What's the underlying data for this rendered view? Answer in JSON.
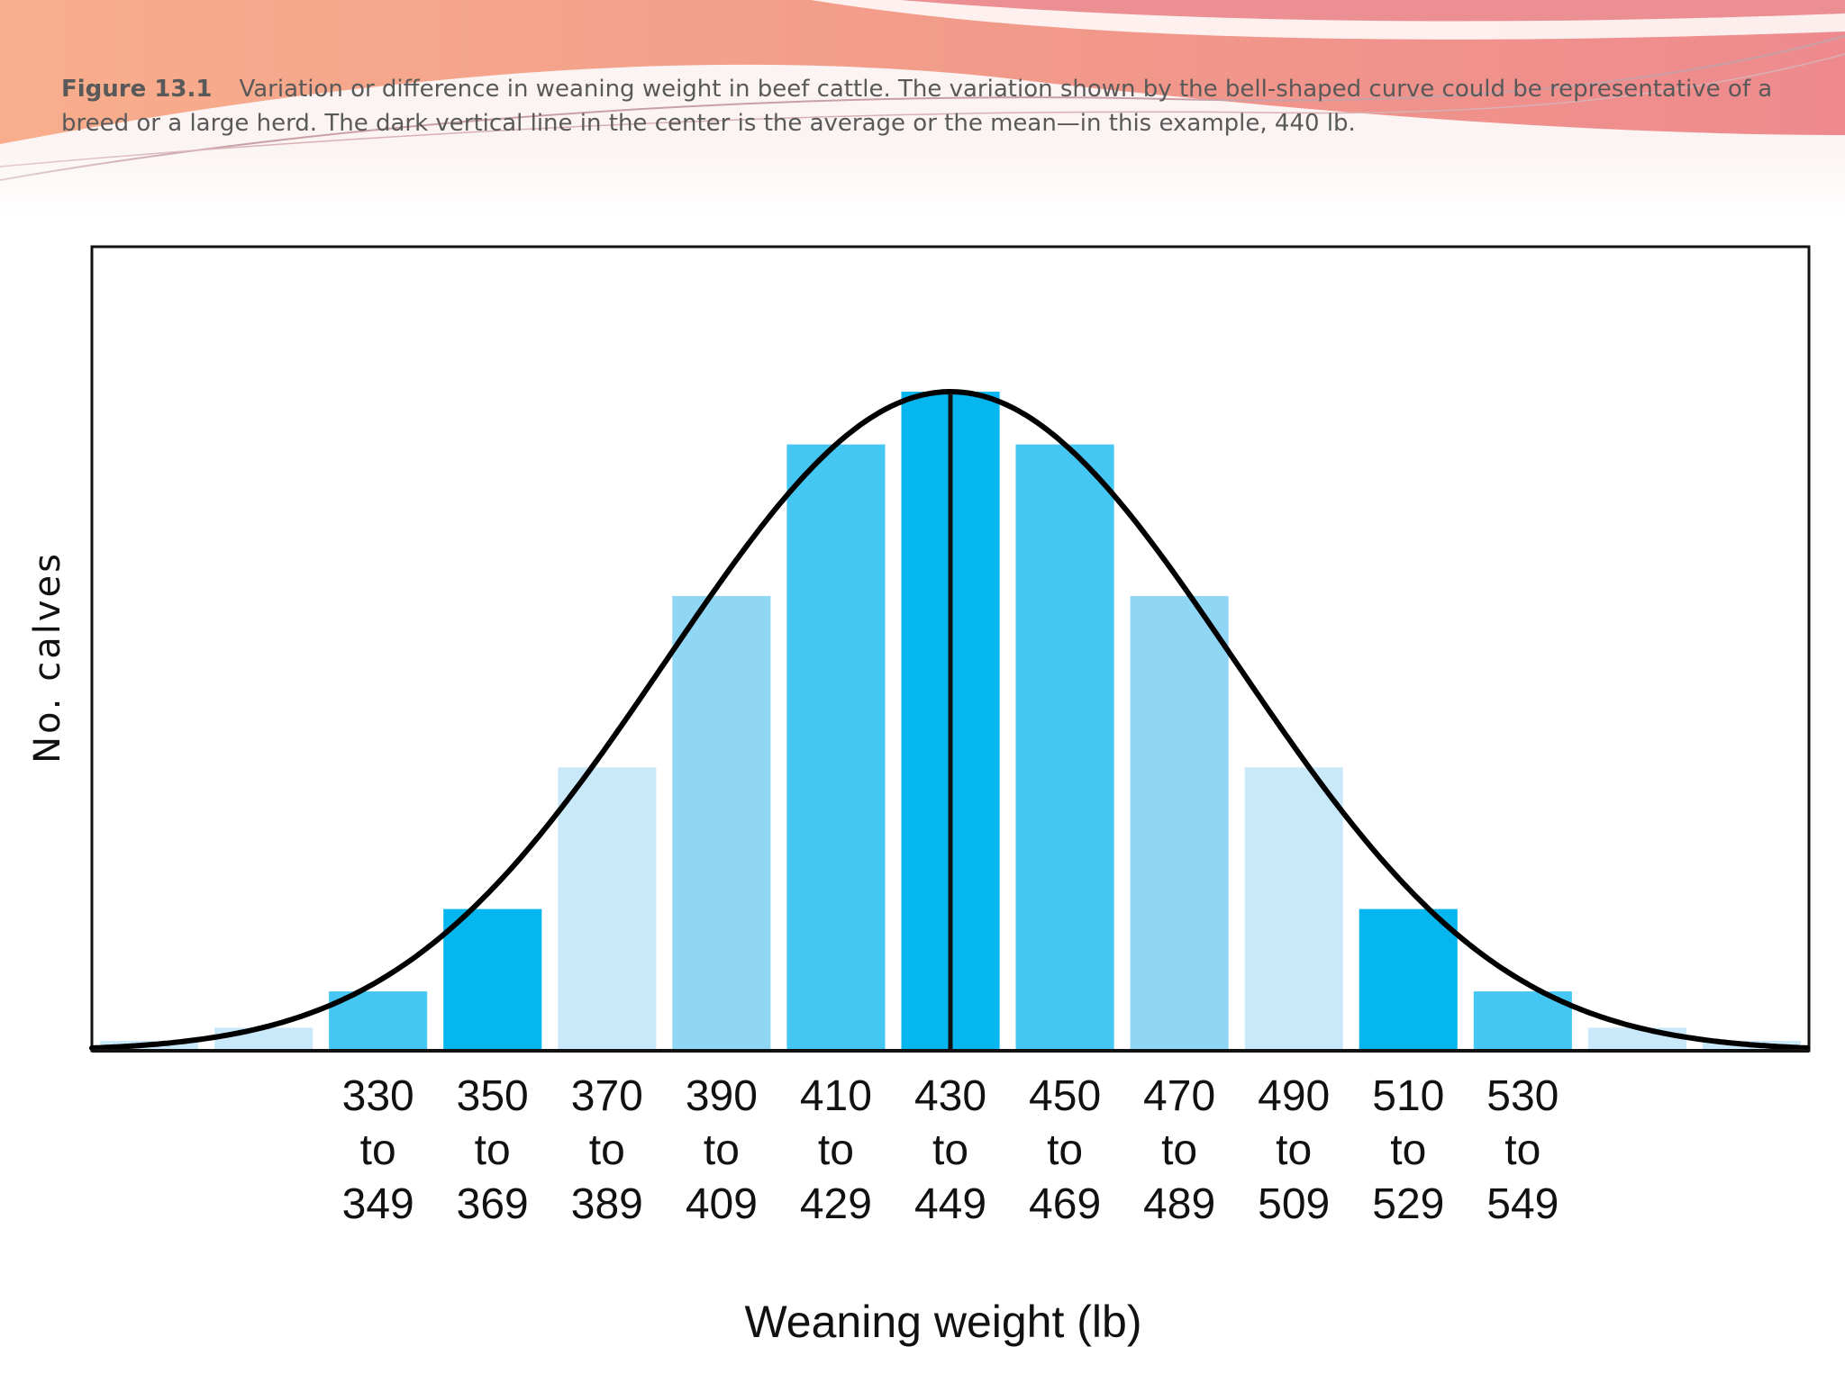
{
  "caption": {
    "figure_label": "Figure 13.1",
    "text": "Variation or difference in weaning weight in beef cattle. The variation shown by the bell-shaped curve could be representative of a breed or a large herd. The dark vertical line in the center is the average or the mean—in this example, 440 lb."
  },
  "chart_data": {
    "type": "bar",
    "title": "",
    "xlabel": "Weaning weight (lb)",
    "ylabel": "No. calves",
    "categories": [
      "",
      "",
      "330 to 349",
      "350 to 369",
      "370 to 389",
      "390 to 409",
      "410 to 429",
      "430 to 449",
      "450 to 469",
      "470 to 489",
      "490 to 509",
      "510 to 529",
      "530 to 549",
      "",
      ""
    ],
    "tick_labels": [
      [
        "",
        "",
        ""
      ],
      [
        "",
        "",
        ""
      ],
      [
        "330",
        "to",
        "349"
      ],
      [
        "350",
        "to",
        "369"
      ],
      [
        "370",
        "to",
        "389"
      ],
      [
        "390",
        "to",
        "409"
      ],
      [
        "410",
        "to",
        "429"
      ],
      [
        "430",
        "to",
        "449"
      ],
      [
        "450",
        "to",
        "469"
      ],
      [
        "470",
        "to",
        "489"
      ],
      [
        "490",
        "to",
        "509"
      ],
      [
        "510",
        "to",
        "529"
      ],
      [
        "530",
        "to",
        "549"
      ],
      [
        "",
        "",
        ""
      ],
      [
        "",
        "",
        ""
      ]
    ],
    "values": [
      1.5,
      3.5,
      9,
      21.5,
      43,
      69,
      92,
      100,
      92,
      69,
      43,
      21.5,
      9,
      3.5,
      1.5
    ],
    "bar_colors": [
      "#c9e9fa",
      "#c9e9fa",
      "#45c7f3",
      "#05b6ef",
      "#c9e9fa",
      "#90d7f6",
      "#45c7f3",
      "#05b6ef",
      "#45c7f3",
      "#90d7f6",
      "#c9e9fa",
      "#05b6ef",
      "#45c7f3",
      "#c9e9fa",
      "#c9e9fa"
    ],
    "ylim": [
      0,
      122
    ],
    "mean_line_category": "430 to 449",
    "curve": "bell-shaped",
    "grid": false,
    "legend": "none"
  },
  "colors": {
    "banner_left": "#f8a987",
    "banner_right": "#ee8a8e",
    "axis": "#111111",
    "curve": "#000000"
  }
}
